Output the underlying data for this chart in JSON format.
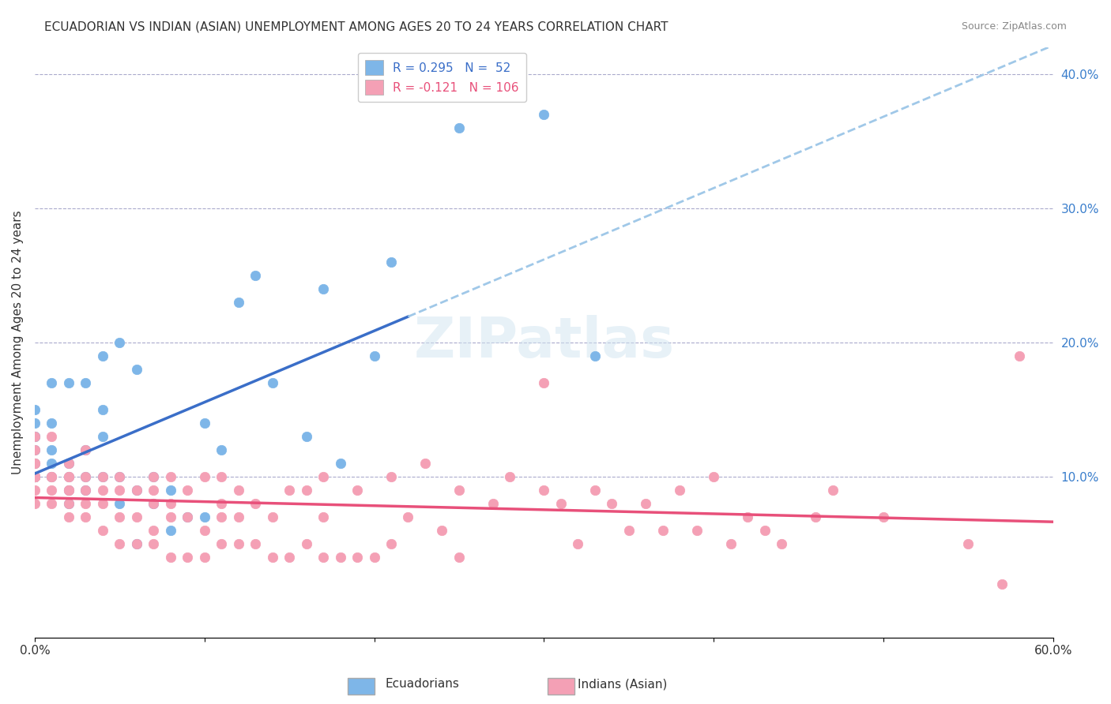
{
  "title": "ECUADORIAN VS INDIAN (ASIAN) UNEMPLOYMENT AMONG AGES 20 TO 24 YEARS CORRELATION CHART",
  "source": "Source: ZipAtlas.com",
  "xlabel": "",
  "ylabel": "Unemployment Among Ages 20 to 24 years",
  "xlim": [
    0.0,
    0.6
  ],
  "ylim": [
    -0.02,
    0.42
  ],
  "xticks": [
    0.0,
    0.1,
    0.2,
    0.3,
    0.4,
    0.5,
    0.6
  ],
  "xticklabels": [
    "0.0%",
    "",
    "",
    "",
    "",
    "",
    "60.0%"
  ],
  "yticks_right": [
    0.1,
    0.2,
    0.3,
    0.4
  ],
  "ytick_labels_right": [
    "10.0%",
    "20.0%",
    "30.0%",
    "40.0%"
  ],
  "legend_r1": "R = 0.295",
  "legend_n1": "N =  52",
  "legend_r2": "R = -0.121",
  "legend_n2": "N = 106",
  "color_ecu": "#7EB6E8",
  "color_ind": "#F4A0B5",
  "color_ecu_line": "#3A6EC8",
  "color_ind_line": "#E8507A",
  "color_ecu_dashed": "#A0C8E8",
  "watermark": "ZIPatlas",
  "ecu_x": [
    0.0,
    0.0,
    0.0,
    0.0,
    0.0,
    0.0,
    0.0,
    0.0,
    0.0,
    0.01,
    0.01,
    0.01,
    0.01,
    0.01,
    0.02,
    0.02,
    0.02,
    0.02,
    0.02,
    0.03,
    0.03,
    0.03,
    0.03,
    0.04,
    0.04,
    0.04,
    0.04,
    0.05,
    0.05,
    0.05,
    0.06,
    0.06,
    0.06,
    0.07,
    0.07,
    0.08,
    0.08,
    0.09,
    0.1,
    0.1,
    0.11,
    0.12,
    0.13,
    0.14,
    0.16,
    0.17,
    0.18,
    0.2,
    0.21,
    0.25,
    0.3,
    0.33
  ],
  "ecu_y": [
    0.1,
    0.1,
    0.1,
    0.11,
    0.12,
    0.13,
    0.13,
    0.14,
    0.15,
    0.1,
    0.11,
    0.12,
    0.14,
    0.17,
    0.08,
    0.09,
    0.1,
    0.11,
    0.17,
    0.09,
    0.1,
    0.12,
    0.17,
    0.1,
    0.13,
    0.15,
    0.19,
    0.08,
    0.1,
    0.2,
    0.05,
    0.09,
    0.18,
    0.08,
    0.1,
    0.06,
    0.09,
    0.07,
    0.07,
    0.14,
    0.12,
    0.23,
    0.25,
    0.17,
    0.13,
    0.24,
    0.11,
    0.19,
    0.26,
    0.36,
    0.37,
    0.19
  ],
  "ind_x": [
    0.0,
    0.0,
    0.0,
    0.0,
    0.0,
    0.0,
    0.0,
    0.0,
    0.0,
    0.0,
    0.01,
    0.01,
    0.01,
    0.01,
    0.01,
    0.02,
    0.02,
    0.02,
    0.02,
    0.02,
    0.02,
    0.02,
    0.03,
    0.03,
    0.03,
    0.03,
    0.03,
    0.04,
    0.04,
    0.04,
    0.04,
    0.05,
    0.05,
    0.05,
    0.05,
    0.06,
    0.06,
    0.06,
    0.07,
    0.07,
    0.07,
    0.07,
    0.07,
    0.08,
    0.08,
    0.08,
    0.08,
    0.09,
    0.09,
    0.09,
    0.1,
    0.1,
    0.1,
    0.11,
    0.11,
    0.11,
    0.11,
    0.12,
    0.12,
    0.12,
    0.13,
    0.13,
    0.14,
    0.14,
    0.15,
    0.15,
    0.16,
    0.16,
    0.17,
    0.17,
    0.17,
    0.18,
    0.19,
    0.19,
    0.2,
    0.21,
    0.21,
    0.22,
    0.23,
    0.24,
    0.25,
    0.25,
    0.27,
    0.28,
    0.3,
    0.3,
    0.31,
    0.32,
    0.33,
    0.34,
    0.35,
    0.36,
    0.37,
    0.38,
    0.39,
    0.4,
    0.41,
    0.42,
    0.43,
    0.44,
    0.46,
    0.47,
    0.5,
    0.55,
    0.57,
    0.58
  ],
  "ind_y": [
    0.08,
    0.09,
    0.1,
    0.1,
    0.1,
    0.1,
    0.11,
    0.11,
    0.12,
    0.13,
    0.08,
    0.09,
    0.1,
    0.1,
    0.13,
    0.07,
    0.08,
    0.09,
    0.09,
    0.1,
    0.1,
    0.11,
    0.07,
    0.08,
    0.09,
    0.1,
    0.12,
    0.06,
    0.08,
    0.09,
    0.1,
    0.05,
    0.07,
    0.09,
    0.1,
    0.05,
    0.07,
    0.09,
    0.05,
    0.06,
    0.08,
    0.09,
    0.1,
    0.04,
    0.07,
    0.08,
    0.1,
    0.04,
    0.07,
    0.09,
    0.04,
    0.06,
    0.1,
    0.05,
    0.07,
    0.08,
    0.1,
    0.05,
    0.07,
    0.09,
    0.05,
    0.08,
    0.04,
    0.07,
    0.04,
    0.09,
    0.05,
    0.09,
    0.04,
    0.07,
    0.1,
    0.04,
    0.04,
    0.09,
    0.04,
    0.05,
    0.1,
    0.07,
    0.11,
    0.06,
    0.04,
    0.09,
    0.08,
    0.1,
    0.09,
    0.17,
    0.08,
    0.05,
    0.09,
    0.08,
    0.06,
    0.08,
    0.06,
    0.09,
    0.06,
    0.1,
    0.05,
    0.07,
    0.06,
    0.05,
    0.07,
    0.09,
    0.07,
    0.05,
    0.02,
    0.19
  ]
}
